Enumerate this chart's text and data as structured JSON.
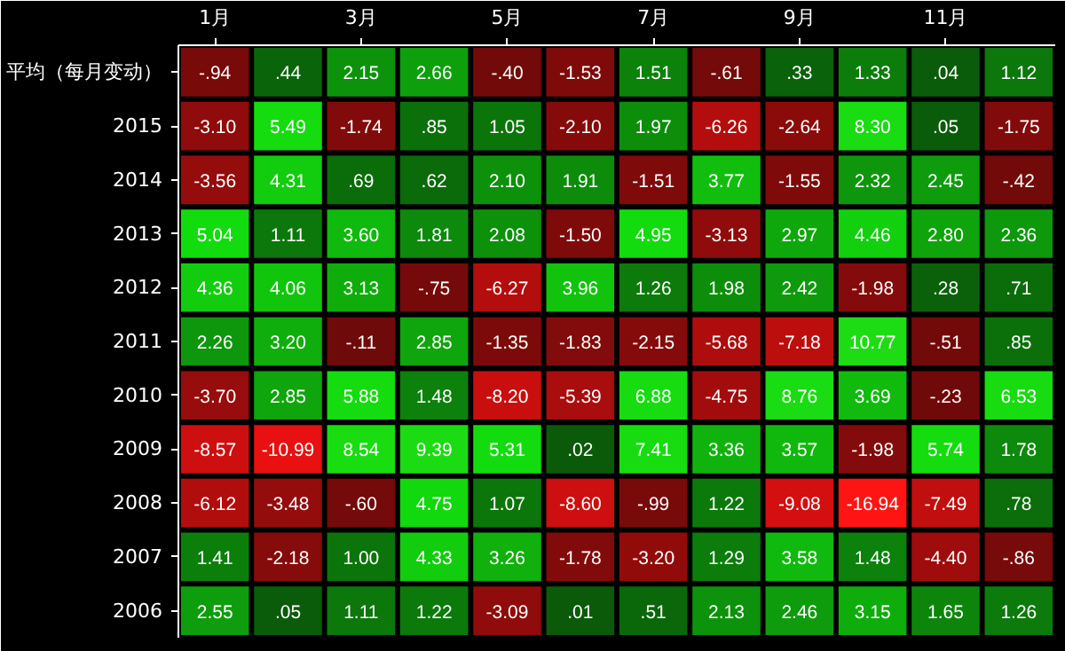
{
  "chart_data": {
    "type": "heatmap",
    "categories": [
      "1月",
      null,
      "3月",
      null,
      "5月",
      null,
      "7月",
      null,
      "9月",
      null,
      "11月",
      null
    ],
    "y_categories": [
      "平均（每月变动）",
      "2015",
      "2014",
      "2013",
      "2012",
      "2011",
      "2010",
      "2009",
      "2008",
      "2007",
      "2006"
    ],
    "cells": [
      [
        -0.94,
        0.44,
        2.15,
        2.66,
        -0.4,
        -1.53,
        1.51,
        -0.61,
        0.33,
        1.33,
        0.04,
        1.12
      ],
      [
        -3.1,
        5.49,
        -1.74,
        0.85,
        1.05,
        -2.1,
        1.97,
        -6.26,
        -2.64,
        8.3,
        0.05,
        -1.75
      ],
      [
        -3.56,
        4.31,
        0.69,
        0.62,
        2.1,
        1.91,
        -1.51,
        3.77,
        -1.55,
        2.32,
        2.45,
        -0.42
      ],
      [
        5.04,
        1.11,
        3.6,
        1.81,
        2.08,
        -1.5,
        4.95,
        -3.13,
        2.97,
        4.46,
        2.8,
        2.36
      ],
      [
        4.36,
        4.06,
        3.13,
        -0.75,
        -6.27,
        3.96,
        1.26,
        1.98,
        2.42,
        -1.98,
        0.28,
        0.71
      ],
      [
        2.26,
        3.2,
        -0.11,
        2.85,
        -1.35,
        -1.83,
        -2.15,
        -5.68,
        -7.18,
        10.77,
        -0.51,
        0.85
      ],
      [
        -3.7,
        2.85,
        5.88,
        1.48,
        -8.2,
        -5.39,
        6.88,
        -4.75,
        8.76,
        3.69,
        -0.23,
        6.53
      ],
      [
        -8.57,
        -10.99,
        8.54,
        9.39,
        5.31,
        0.02,
        7.41,
        3.36,
        3.57,
        -1.98,
        5.74,
        1.78
      ],
      [
        -6.12,
        -3.48,
        -0.6,
        4.75,
        1.07,
        -8.6,
        -0.99,
        1.22,
        -9.08,
        -16.94,
        -7.49,
        0.78
      ],
      [
        1.41,
        -2.18,
        1.0,
        4.33,
        3.26,
        -1.78,
        -3.2,
        1.29,
        3.58,
        1.48,
        -4.4,
        -0.86
      ],
      [
        2.55,
        0.05,
        1.11,
        1.22,
        -3.09,
        0.01,
        0.51,
        2.13,
        2.46,
        3.15,
        1.65,
        1.26
      ]
    ],
    "cell_labels": [
      [
        "-.94",
        ".44",
        "2.15",
        "2.66",
        "-.40",
        "-1.53",
        "1.51",
        "-.61",
        ".33",
        "1.33",
        ".04",
        "1.12"
      ],
      [
        "-3.10",
        "5.49",
        "-1.74",
        ".85",
        "1.05",
        "-2.10",
        "1.97",
        "-6.26",
        "-2.64",
        "8.30",
        ".05",
        "-1.75"
      ],
      [
        "-3.56",
        "4.31",
        ".69",
        ".62",
        "2.10",
        "1.91",
        "-1.51",
        "3.77",
        "-1.55",
        "2.32",
        "2.45",
        "-.42"
      ],
      [
        "5.04",
        "1.11",
        "3.60",
        "1.81",
        "2.08",
        "-1.50",
        "4.95",
        "-3.13",
        "2.97",
        "4.46",
        "2.80",
        "2.36"
      ],
      [
        "4.36",
        "4.06",
        "3.13",
        "-.75",
        "-6.27",
        "3.96",
        "1.26",
        "1.98",
        "2.42",
        "-1.98",
        ".28",
        ".71"
      ],
      [
        "2.26",
        "3.20",
        "-.11",
        "2.85",
        "-1.35",
        "-1.83",
        "-2.15",
        "-5.68",
        "-7.18",
        "10.77",
        "-.51",
        ".85"
      ],
      [
        "-3.70",
        "2.85",
        "5.88",
        "1.48",
        "-8.20",
        "-5.39",
        "6.88",
        "-4.75",
        "8.76",
        "3.69",
        "-.23",
        "6.53"
      ],
      [
        "-8.57",
        "-10.99",
        "8.54",
        "9.39",
        "5.31",
        ".02",
        "7.41",
        "3.36",
        "3.57",
        "-1.98",
        "5.74",
        "1.78"
      ],
      [
        "-6.12",
        "-3.48",
        "-.60",
        "4.75",
        "1.07",
        "-8.60",
        "-.99",
        "1.22",
        "-9.08",
        "-16.94",
        "-7.49",
        ".78"
      ],
      [
        "1.41",
        "-2.18",
        "1.00",
        "4.33",
        "3.26",
        "-1.78",
        "-3.20",
        "1.29",
        "3.58",
        "1.48",
        "-4.40",
        "-.86"
      ],
      [
        "2.55",
        ".05",
        "1.11",
        "1.22",
        "-3.09",
        ".01",
        ".51",
        "2.13",
        "2.46",
        "3.15",
        "1.65",
        "1.26"
      ]
    ]
  }
}
